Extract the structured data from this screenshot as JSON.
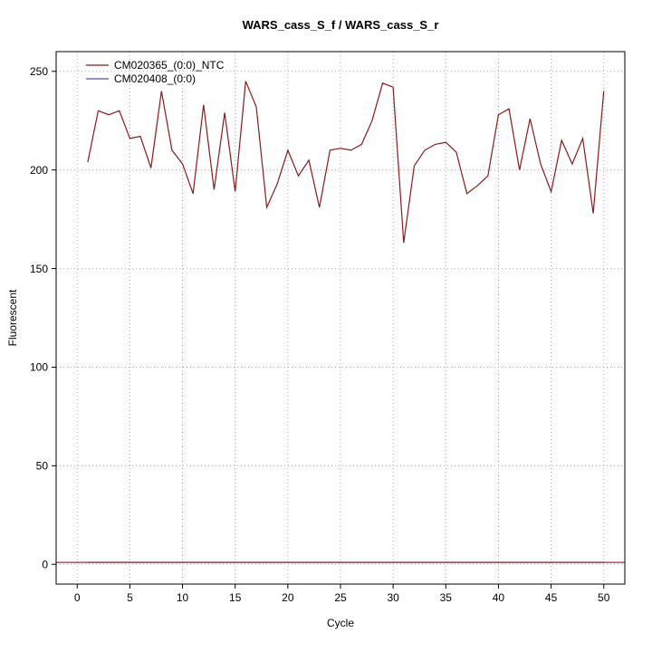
{
  "title": "WARS_cass_S_f / WARS_cass_S_r",
  "chart_data": {
    "type": "line",
    "title": "WARS_cass_S_f / WARS_cass_S_r",
    "xlabel": "Cycle",
    "ylabel": "Fluorescent",
    "xlim": [
      -2,
      52
    ],
    "ylim": [
      -10,
      260
    ],
    "xticks": [
      0,
      5,
      10,
      15,
      20,
      25,
      30,
      35,
      40,
      45,
      50
    ],
    "yticks": [
      0,
      50,
      100,
      150,
      200,
      250
    ],
    "grid": true,
    "grid_color": "#aaaaaa",
    "legend_position": "top-left",
    "x": [
      1,
      2,
      3,
      4,
      5,
      6,
      7,
      8,
      9,
      10,
      11,
      12,
      13,
      14,
      15,
      16,
      17,
      18,
      19,
      20,
      21,
      22,
      23,
      24,
      25,
      26,
      27,
      28,
      29,
      30,
      31,
      32,
      33,
      34,
      35,
      36,
      37,
      38,
      39,
      40,
      41,
      42,
      43,
      44,
      45,
      46,
      47,
      48,
      49,
      50
    ],
    "series": [
      {
        "name": "CM020365_(0:0)_NTC",
        "color": "#8b1a1a",
        "values": [
          204,
          230,
          228,
          230,
          216,
          217,
          201,
          240,
          210,
          203,
          188,
          233,
          190,
          229,
          189,
          245,
          232,
          181,
          193,
          210,
          197,
          205,
          181,
          210,
          211,
          210,
          213,
          225,
          244,
          242,
          163,
          202,
          210,
          213,
          214,
          209,
          188,
          192,
          197,
          228,
          231,
          200,
          226,
          203,
          189,
          215,
          203,
          216,
          178,
          240
        ]
      },
      {
        "name": "CM020408_(0:0)",
        "color": "#555599",
        "values": [
          1,
          1,
          1,
          1,
          1,
          1,
          1,
          1,
          1,
          1,
          1,
          1,
          1,
          1,
          1,
          1,
          1,
          1,
          1,
          1,
          1,
          1,
          1,
          1,
          1,
          1,
          1,
          1,
          1,
          1,
          1,
          1,
          1,
          1,
          1,
          1,
          1,
          1,
          1,
          1,
          1,
          1,
          1,
          1,
          1,
          1,
          1,
          1,
          1,
          1
        ]
      }
    ],
    "threshold_line": {
      "y": 1,
      "color": "#8b1a1a"
    }
  }
}
